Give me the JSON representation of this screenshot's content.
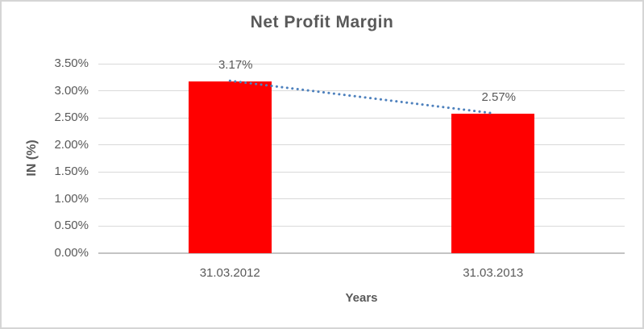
{
  "chart_data": {
    "type": "bar",
    "title": "Net Profit Margin",
    "categories": [
      "31.03.2012",
      "31.03.2013"
    ],
    "values": [
      3.17,
      2.57
    ],
    "data_labels": [
      "3.17%",
      "2.57%"
    ],
    "xlabel": "Years",
    "ylabel": "IN (%)",
    "ylim": [
      0,
      3.5
    ],
    "ytick_step": 0.5,
    "ytick_labels": [
      "0.00%",
      "0.50%",
      "1.00%",
      "1.50%",
      "2.00%",
      "2.50%",
      "3.00%",
      "3.50%"
    ],
    "grid": true,
    "legend": "none",
    "bar_color": "#ff0000",
    "trendline": {
      "type": "linear",
      "style": "dotted",
      "color": "#4e81bd",
      "from_value": 3.17,
      "to_value": 2.57
    },
    "colors": {
      "title_text": "#595959",
      "axis_text": "#595959",
      "gridline": "#d9d9d9",
      "axis_line": "#c3c3c3",
      "background": "#ffffff",
      "frame_border": "#d5d5d5"
    }
  }
}
